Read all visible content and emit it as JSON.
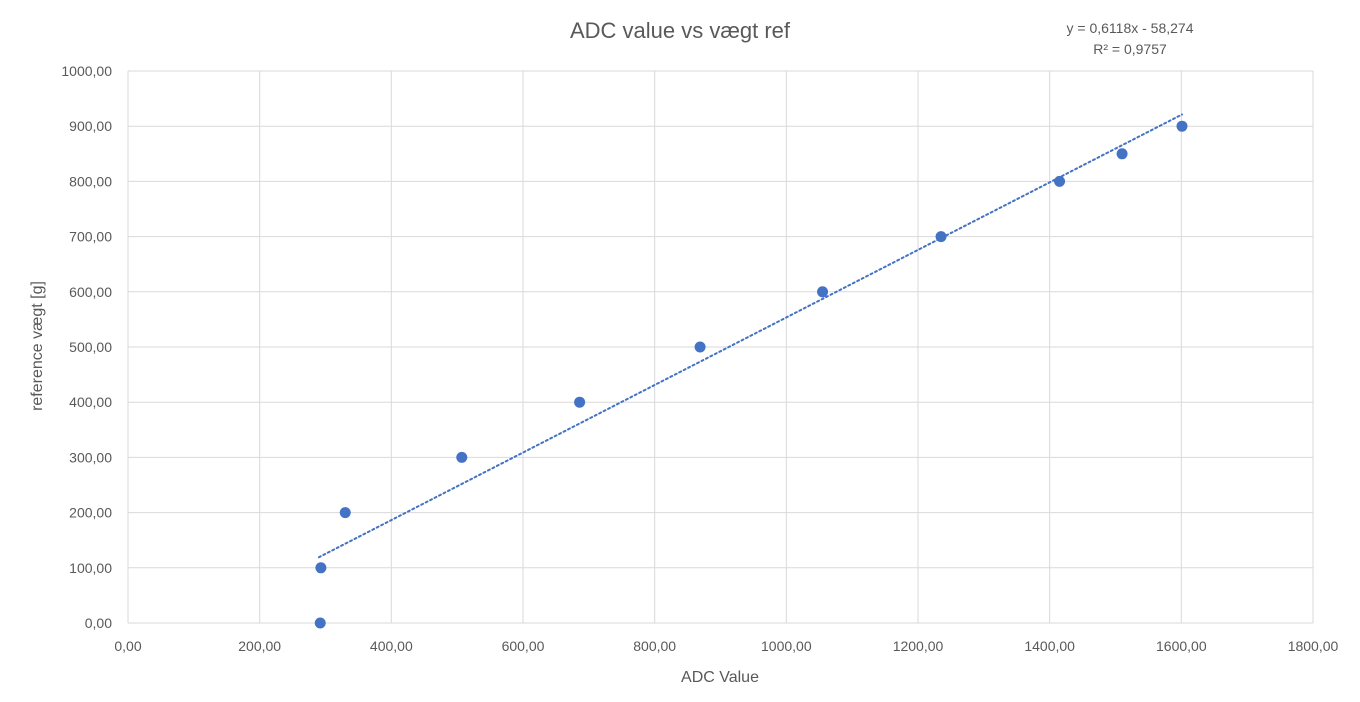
{
  "chart_data": {
    "type": "scatter",
    "title": "ADC value vs vægt ref",
    "xlabel": "ADC Value",
    "ylabel": "reference vægt [g]",
    "xlim": [
      0,
      1800
    ],
    "ylim": [
      0,
      1000
    ],
    "x_ticks": [
      "0,00",
      "200,00",
      "400,00",
      "600,00",
      "800,00",
      "1000,00",
      "1200,00",
      "1400,00",
      "1600,00",
      "1800,00"
    ],
    "y_ticks": [
      "0,00",
      "100,00",
      "200,00",
      "300,00",
      "400,00",
      "500,00",
      "600,00",
      "700,00",
      "800,00",
      "900,00",
      "1000,00"
    ],
    "grid": true,
    "legend": "none",
    "series": [
      {
        "color": "#4472c4",
        "points": [
          {
            "x": 292,
            "y": 0
          },
          {
            "x": 293,
            "y": 100
          },
          {
            "x": 330,
            "y": 200
          },
          {
            "x": 507,
            "y": 300
          },
          {
            "x": 686,
            "y": 400
          },
          {
            "x": 869,
            "y": 500
          },
          {
            "x": 1055,
            "y": 600
          },
          {
            "x": 1235,
            "y": 700
          },
          {
            "x": 1415,
            "y": 800
          },
          {
            "x": 1510,
            "y": 850
          },
          {
            "x": 1601,
            "y": 900
          }
        ]
      }
    ],
    "trendline": {
      "type": "linear",
      "slope": 0.6118,
      "intercept": -58.274,
      "x_range": [
        290,
        1601
      ],
      "color": "#4472c4",
      "equation": "y = 0,6118x - 58,274",
      "r_squared": "R² = 0,9757"
    }
  }
}
